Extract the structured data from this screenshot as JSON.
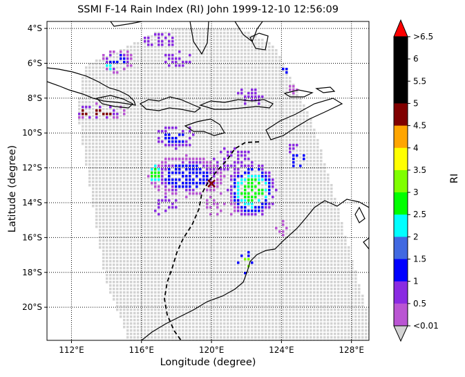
{
  "title": "SSMI F-14 Rain Index (RI) John 1999-12-10 12:56:09",
  "xlabel": "Longitude (degree)",
  "ylabel": "Latitude (degree)",
  "colorbar": {
    "label": "RI",
    "tick_labels": [
      ">6.5",
      "6",
      "5.5",
      "5",
      "4.5",
      "4",
      "3.5",
      "3",
      "2.5",
      "2",
      "1.5",
      "1",
      "0.5",
      "<0.01"
    ],
    "colors": [
      "#000000",
      "#000000",
      "#000000",
      "#800000",
      "#ffa500",
      "#ffff00",
      "#7fff00",
      "#00ff00",
      "#00ffff",
      "#4169e1",
      "#0000ff",
      "#8a2be2",
      "#ba55d3"
    ],
    "over_color": "#ff0000",
    "under_color": "#d3d3d3"
  },
  "map": {
    "lon_range": [
      110.6,
      129.0
    ],
    "lat_range": [
      -21.9,
      -3.6
    ],
    "x_ticks": [
      "112°E",
      "116°E",
      "120°E",
      "124°E",
      "128°E"
    ],
    "x_tick_values": [
      112,
      116,
      120,
      124,
      128
    ],
    "y_ticks": [
      "4°S",
      "6°S",
      "8°S",
      "10°S",
      "12°S",
      "14°S",
      "16°S",
      "18°S",
      "20°S"
    ],
    "y_tick_values": [
      -4,
      -6,
      -8,
      -10,
      -12,
      -14,
      -16,
      -18,
      -20
    ],
    "gridlines": "dotted",
    "swath_background": "#d3d3d3",
    "storm_center": {
      "lon": 120.0,
      "lat": -12.9,
      "marker": "x"
    },
    "track": "dashed"
  }
}
